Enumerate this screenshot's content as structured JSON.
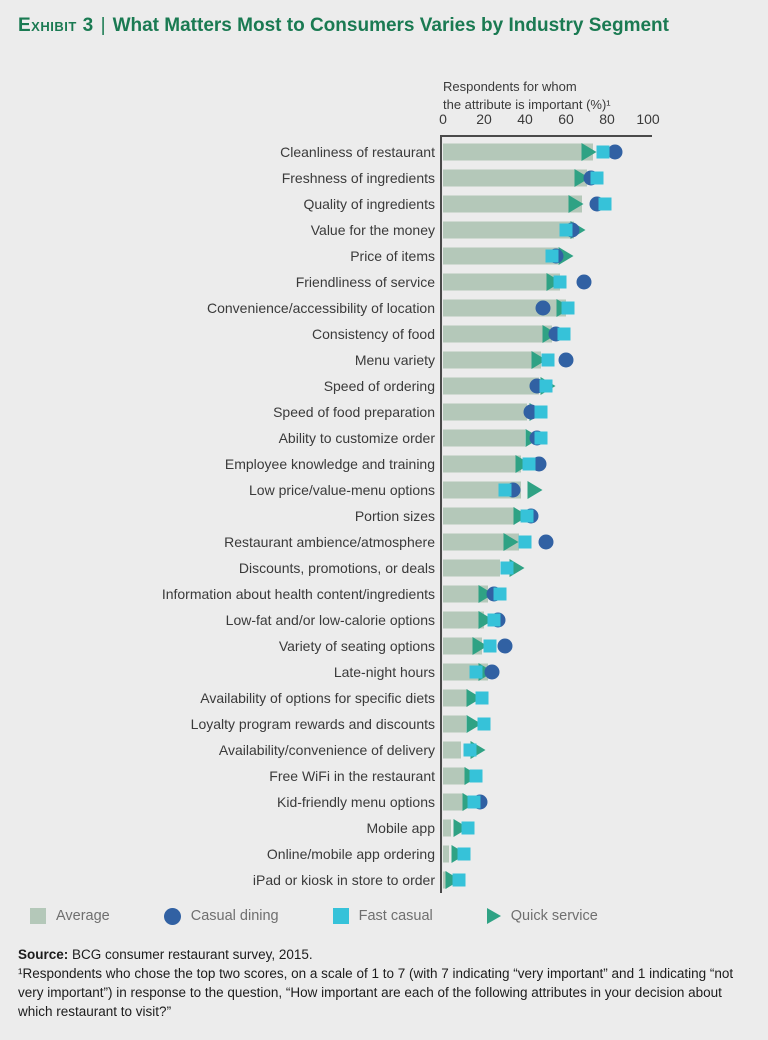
{
  "title": {
    "exhibit": "Exhibit 3",
    "separator": "|",
    "text": "What Matters Most to Consumers Varies by Industry Segment"
  },
  "axis": {
    "header_line1": "Respondents for whom",
    "header_line2": "the attribute is important (%)¹"
  },
  "chart_data": {
    "type": "bar",
    "orientation": "horizontal",
    "title": "What Matters Most to Consumers Varies by Industry Segment",
    "xlabel": "Respondents for whom the attribute is important (%)",
    "xlim": [
      0,
      100
    ],
    "x_ticks": [
      0,
      20,
      40,
      60,
      80,
      100
    ],
    "grid": false,
    "legend_position": "bottom",
    "categories": [
      "Cleanliness of restaurant",
      "Freshness of ingredients",
      "Quality of ingredients",
      "Value for the money",
      "Price of items",
      "Friendliness of service",
      "Convenience/accessibility of location",
      "Consistency of food",
      "Menu variety",
      "Speed of ordering",
      "Speed of food preparation",
      "Ability to customize order",
      "Employee knowledge and training",
      "Low price/value-menu options",
      "Portion sizes",
      "Restaurant ambience/atmosphere",
      "Discounts, promotions, or deals",
      "Information about health content/ingredients",
      "Low-fat and/or low-calorie options",
      "Variety of seating options",
      "Late-night hours",
      "Availability of options for specific diets",
      "Loyalty program rewards and discounts",
      "Availability/convenience of delivery",
      "Free WiFi in the restaurant",
      "Kid-friendly menu options",
      "Mobile app",
      "Online/mobile app ordering",
      "iPad or kiosk in store to order"
    ],
    "series": [
      {
        "name": "Average",
        "type": "bar",
        "color": "#b4c8b9",
        "values": [
          73,
          70,
          68,
          64,
          56,
          57,
          60,
          53,
          48,
          47,
          41,
          40,
          38,
          38,
          35,
          37,
          28,
          22,
          20,
          19,
          22,
          12,
          11,
          9,
          11,
          10,
          4,
          3,
          2
        ]
      },
      {
        "name": "Casual dining",
        "type": "circle",
        "color": "#3161a3",
        "values": [
          84,
          72,
          75,
          63,
          55,
          69,
          49,
          55,
          60,
          46,
          43,
          46,
          47,
          34,
          43,
          50,
          null,
          25,
          27,
          30,
          24,
          null,
          null,
          null,
          null,
          18,
          null,
          null,
          null
        ]
      },
      {
        "name": "Fast casual",
        "type": "square",
        "color": "#36c2d9",
        "values": [
          78,
          75,
          79,
          60,
          53,
          57,
          61,
          59,
          51,
          50,
          48,
          48,
          42,
          30,
          41,
          40,
          31,
          28,
          25,
          23,
          16,
          19,
          20,
          13,
          16,
          15,
          12,
          10,
          8
        ]
      },
      {
        "name": "Quick service",
        "type": "triangle",
        "color": "#2fa284",
        "values": [
          71,
          68,
          65,
          66,
          60,
          54,
          59,
          52,
          47,
          51,
          46,
          44,
          39,
          45,
          38,
          33,
          36,
          21,
          21,
          18,
          21,
          15,
          15,
          17,
          14,
          13,
          9,
          8,
          5
        ]
      }
    ]
  },
  "legend": {
    "items": [
      {
        "label": "Average",
        "shape": "square",
        "color_key": "average_bar"
      },
      {
        "label": "Casual dining",
        "shape": "circle",
        "color_key": "casual_dining"
      },
      {
        "label": "Fast casual",
        "shape": "square",
        "color_key": "fast_casual"
      },
      {
        "label": "Quick service",
        "shape": "triangle",
        "color_key": "quick_service"
      }
    ]
  },
  "footer": {
    "source_label": "Source:",
    "source_text": " BCG consumer restaurant survey, 2015.",
    "footnote": "¹Respondents who chose the top two scores, on a scale of 1 to 7 (with 7 indicating “very important” and 1 indicating “not very important”) in response to the question, “How important are each of the following attributes in your decision about which restaurant to visit?”"
  },
  "colors": {
    "background": "#ececec",
    "title_green": "#1a7a52",
    "average_bar": "#b4c8b9",
    "casual_dining": "#3161a3",
    "fast_casual": "#36c2d9",
    "quick_service": "#2fa284",
    "axis_line": "#4a4a4a"
  }
}
